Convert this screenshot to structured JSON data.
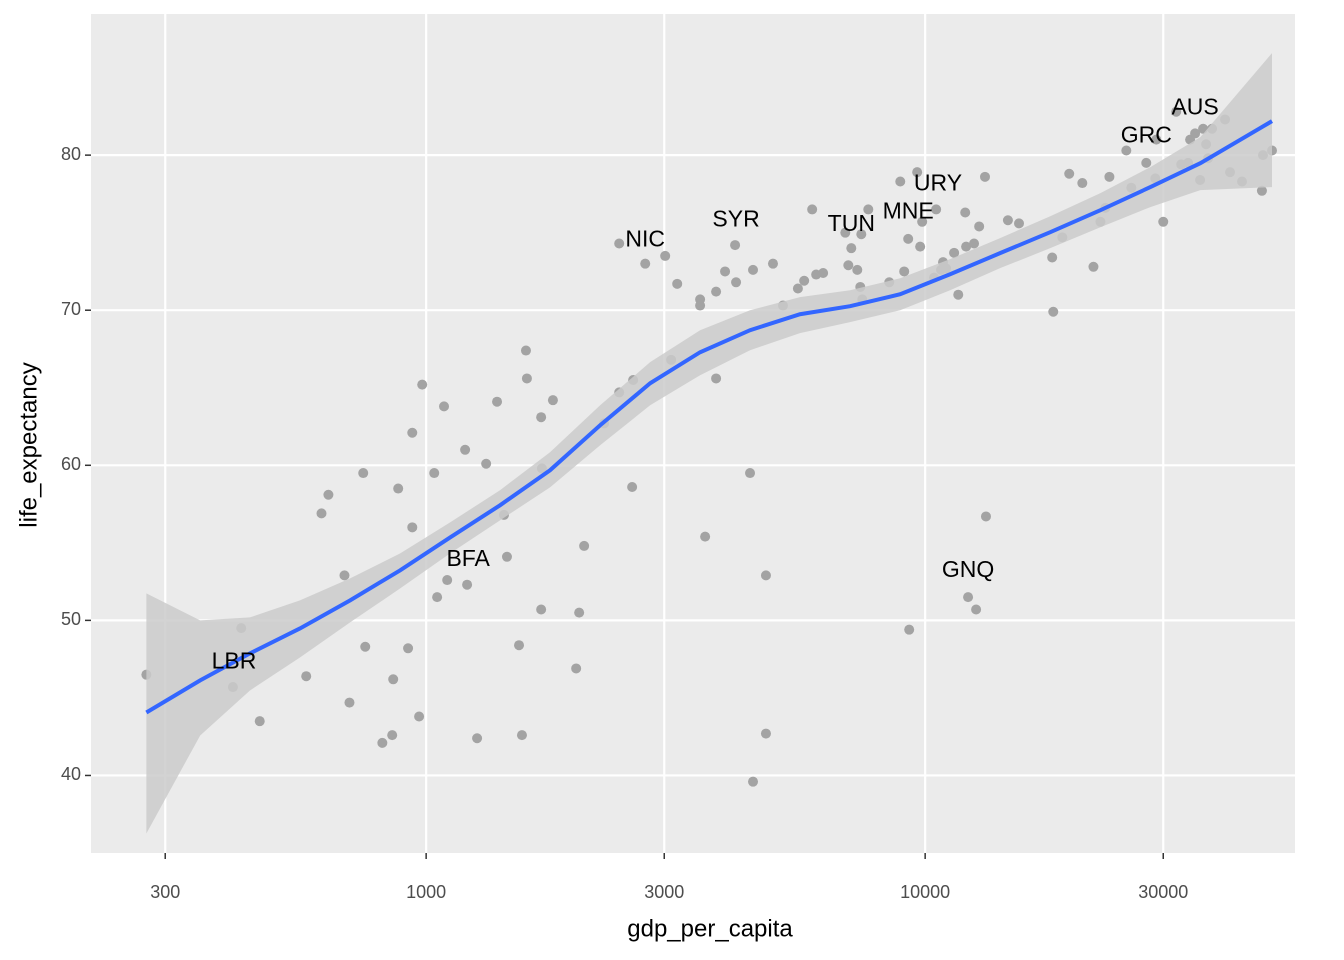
{
  "chart_data": {
    "type": "scatter",
    "x_label": "gdp_per_capita",
    "y_label": "life_expectancy",
    "xlog": true,
    "grid": true,
    "xlim": [
      213,
      55100
    ],
    "ylim": [
      35.0,
      89.1
    ],
    "xticks": [
      300,
      1000,
      3000,
      10000,
      30000
    ],
    "yticks": [
      40,
      50,
      60,
      70,
      80
    ],
    "point_color": "#a3a3a3",
    "x": [
      275,
      410,
      426,
      464,
      575,
      617,
      637,
      686,
      702,
      748,
      755,
      817,
      855,
      859,
      879,
      920,
      938,
      938,
      968,
      982,
      1038,
      1052,
      1086,
      1102,
      1197,
      1208,
      1265,
      1319,
      1387,
      1432,
      1452,
      1535,
      1556,
      1585,
      1592,
      1700,
      1700,
      1706,
      1795,
      1998,
      2026,
      2073,
      2273,
      2437,
      2437,
      2587,
      2599,
      2748,
      3013,
      3097,
      3185,
      3540,
      3540,
      3623,
      3811,
      3811,
      3972,
      4160,
      4179,
      4457,
      4519,
      4519,
      4797,
      4797,
      4955,
      5189,
      5559,
      5722,
      5937,
      6047,
      6245,
      6918,
      7015,
      7112,
      7311,
      7413,
      7448,
      7482,
      7692,
      8474,
      8915,
      9078,
      9247,
      9290,
      9638,
      9772,
      9863,
      10520,
      10420,
      10760,
      10860,
      11010,
      11430,
      11650,
      12030,
      12080,
      12190,
      12530,
      12650,
      12830,
      13180,
      13240,
      14650,
      15420,
      17970,
      18060,
      18830,
      19440,
      20650,
      21740,
      22450,
      22970,
      23400,
      25300,
      25890,
      27740,
      28920,
      29050,
      30000,
      31850,
      32590,
      33650,
      33960,
      34750,
      35560,
      36060,
      36560,
      36900,
      37580,
      39900,
      40830,
      43150,
      47300,
      47530,
      49550
    ],
    "y": [
      46.5,
      45.7,
      49.5,
      43.5,
      46.4,
      56.9,
      58.1,
      52.9,
      44.7,
      59.5,
      48.3,
      42.1,
      42.6,
      46.2,
      58.5,
      48.2,
      62.1,
      56.0,
      43.8,
      65.2,
      59.5,
      51.5,
      63.8,
      52.6,
      61.0,
      52.3,
      42.4,
      60.1,
      64.1,
      56.8,
      54.1,
      48.4,
      42.6,
      67.4,
      65.6,
      63.1,
      50.7,
      59.8,
      64.2,
      46.9,
      50.5,
      54.8,
      62.7,
      64.7,
      74.3,
      58.6,
      65.5,
      73.0,
      73.5,
      66.8,
      71.7,
      70.7,
      70.3,
      55.4,
      71.2,
      65.6,
      72.5,
      74.2,
      71.8,
      59.5,
      72.6,
      39.6,
      52.9,
      42.7,
      73.0,
      70.3,
      71.4,
      71.9,
      76.5,
      72.3,
      72.4,
      75.0,
      72.9,
      74.0,
      72.6,
      71.5,
      74.9,
      70.7,
      76.5,
      71.8,
      78.3,
      72.5,
      74.6,
      49.4,
      78.9,
      74.1,
      75.7,
      76.5,
      72.1,
      72.6,
      73.1,
      72.7,
      73.7,
      71.0,
      76.3,
      74.1,
      51.5,
      74.3,
      50.7,
      75.4,
      78.6,
      56.7,
      75.8,
      75.6,
      73.4,
      69.9,
      74.7,
      78.8,
      78.2,
      72.8,
      75.7,
      76.6,
      78.6,
      80.3,
      77.9,
      79.5,
      78.5,
      81.0,
      75.7,
      82.8,
      79.4,
      79.5,
      81.0,
      81.4,
      78.4,
      81.7,
      80.7,
      79.8,
      81.7,
      82.3,
      78.9,
      78.3,
      77.7,
      80.0,
      80.3
    ],
    "smooth": {
      "color": "#3366ff",
      "fill": "#cbcbcb",
      "x": [
        275,
        352.5,
        443.5,
        558.6,
        704.1,
        887.1,
        1117,
        1406,
        1771,
        2232,
        2811,
        3540,
        4457,
        5612,
        7071,
        8912,
        11220,
        14130,
        17810,
        22450,
        28270,
        35600,
        49550
      ],
      "y": [
        44.06,
        46.13,
        47.87,
        49.48,
        51.29,
        53.23,
        55.35,
        57.42,
        59.68,
        62.58,
        65.29,
        67.29,
        68.71,
        69.74,
        70.26,
        71.03,
        72.32,
        73.68,
        75.03,
        76.45,
        77.94,
        79.48,
        82.19
      ],
      "ymin": [
        36.26,
        42.58,
        45.48,
        47.61,
        49.87,
        52.06,
        54.32,
        56.45,
        58.58,
        61.29,
        63.87,
        65.81,
        67.42,
        68.52,
        69.23,
        70.0,
        71.29,
        72.71,
        74.0,
        75.35,
        76.65,
        77.74,
        77.94
      ],
      "ymax": [
        51.74,
        50.0,
        50.19,
        51.29,
        52.71,
        54.32,
        56.32,
        58.39,
        60.84,
        63.87,
        66.65,
        68.71,
        70.0,
        70.84,
        71.29,
        72.06,
        73.29,
        74.65,
        76.06,
        77.55,
        79.23,
        81.16,
        86.58
      ]
    },
    "labels": [
      {
        "text": "LBR",
        "x": 412,
        "y": 47.3
      },
      {
        "text": "BFA",
        "x": 1214,
        "y": 53.9
      },
      {
        "text": "NIC",
        "x": 2748,
        "y": 74.5
      },
      {
        "text": "SYR",
        "x": 4179,
        "y": 75.8
      },
      {
        "text": "TUN",
        "x": 7112,
        "y": 75.5
      },
      {
        "text": "MNE",
        "x": 9247,
        "y": 76.3
      },
      {
        "text": "URY",
        "x": 10610,
        "y": 78.1
      },
      {
        "text": "GNQ",
        "x": 12190,
        "y": 53.2
      },
      {
        "text": "GRC",
        "x": 27740,
        "y": 81.2
      },
      {
        "text": "AUS",
        "x": 34750,
        "y": 83.0
      }
    ]
  }
}
